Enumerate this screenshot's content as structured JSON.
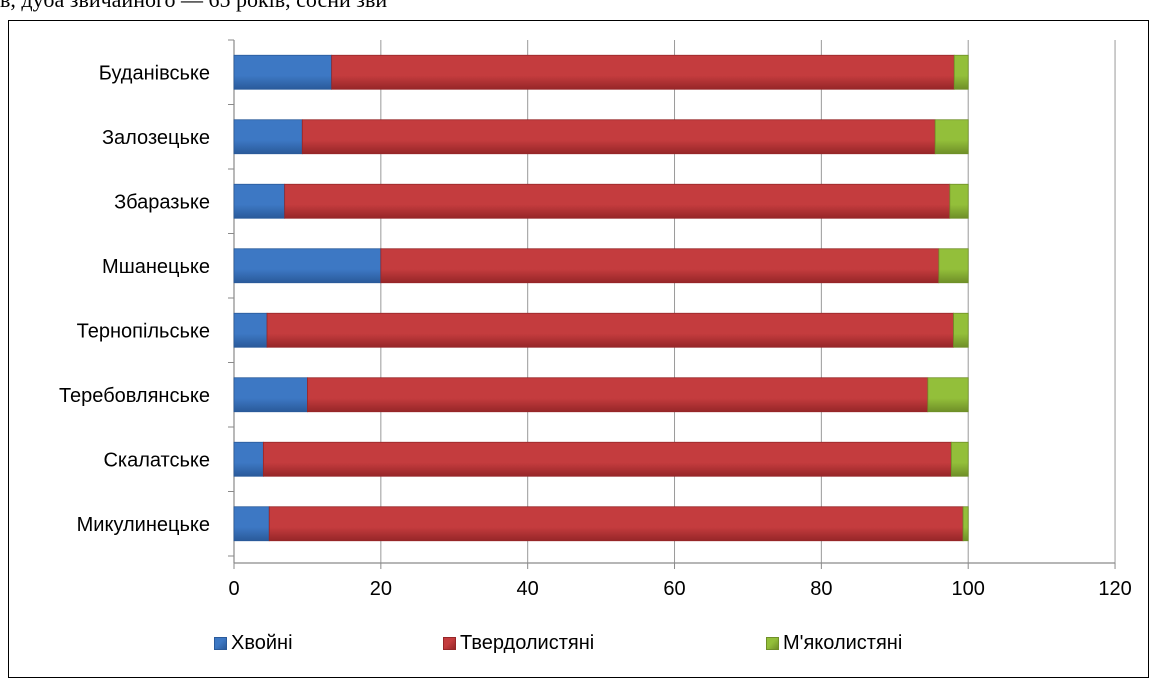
{
  "header_fragment": "в, дуба звичайного — 65 років, сосни зви",
  "colors": {
    "conifer": "#3d78c4",
    "conifer_dark": "#2a5a9a",
    "hard": "#c43c3e",
    "hard_dark": "#962628",
    "soft": "#93bf3a",
    "soft_dark": "#6f8f28",
    "grid": "#9a9a9a",
    "axis": "#8a8a8a"
  },
  "chart_data": {
    "type": "bar",
    "orientation": "horizontal",
    "stacked": true,
    "categories": [
      "Буданівське",
      "Залозецьке",
      "Збаразьке",
      "Мшанецьке",
      "Тернопільське",
      "Теребовлянське",
      "Скалатське",
      "Микулинецьке"
    ],
    "series": [
      {
        "name": "Хвойні",
        "values": [
          13.3,
          9.3,
          6.9,
          20.0,
          4.5,
          10.0,
          4.0,
          4.8
        ]
      },
      {
        "name": "Твердолистяні",
        "values": [
          84.8,
          86.2,
          90.6,
          76.0,
          93.5,
          84.5,
          93.7,
          94.5
        ]
      },
      {
        "name": "М'яколистяні",
        "values": [
          1.9,
          4.5,
          2.5,
          4.0,
          2.0,
          5.5,
          2.3,
          0.7
        ]
      }
    ],
    "xlim": [
      0,
      120
    ],
    "xticks": [
      "0",
      "20",
      "40",
      "60",
      "80",
      "100",
      "120"
    ],
    "grid": "vertical",
    "legend_position": "bottom"
  }
}
